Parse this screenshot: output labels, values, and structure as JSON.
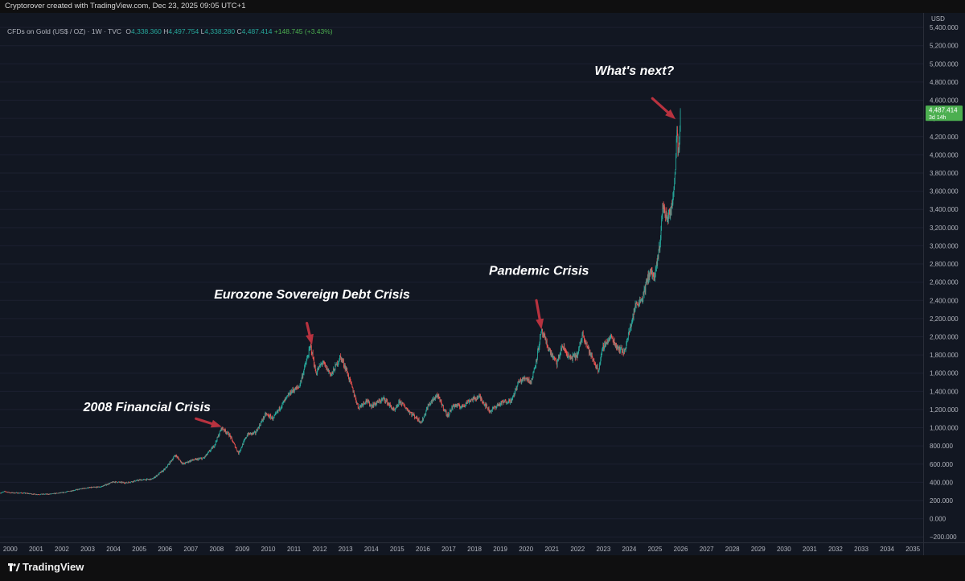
{
  "header": {
    "credit": "Cryptorover created with TradingView.com, Dec 23, 2025 09:05 UTC+1"
  },
  "legend": {
    "symbol": "CFDs on Gold (US$ / OZ) · 1W · TVC",
    "o_label": "O",
    "open": "4,338.360",
    "h_label": "H",
    "high": "4,497.754",
    "l_label": "L",
    "low": "4,338.280",
    "c_label": "C",
    "close": "4,487.414",
    "change": "+148.745 (+3.43%)"
  },
  "price_tag": {
    "value": "4,487.414",
    "countdown": "3d 14h",
    "color": "#4caf50"
  },
  "footer": {
    "brand": "TradingView"
  },
  "colors": {
    "up": "#26a69a",
    "down": "#ef5350",
    "arrow": "#b8323f",
    "background": "#121722"
  },
  "chart_data": {
    "type": "candlestick",
    "title": "",
    "currency": "USD",
    "x_unit": "year",
    "xlim": [
      1999.6,
      2035.4
    ],
    "ylim": [
      -260,
      5560
    ],
    "x_ticks": [
      "2000",
      "2001",
      "2002",
      "2003",
      "2004",
      "2005",
      "2006",
      "2007",
      "2008",
      "2009",
      "2010",
      "2011",
      "2012",
      "2013",
      "2014",
      "2015",
      "2016",
      "2017",
      "2018",
      "2019",
      "2020",
      "2021",
      "2022",
      "2023",
      "2024",
      "2025",
      "2026",
      "2027",
      "2028",
      "2029",
      "2030",
      "2031",
      "2032",
      "2033",
      "2034",
      "2035"
    ],
    "y_ticks": [
      -200,
      0,
      200,
      400,
      600,
      800,
      1000,
      1200,
      1400,
      1600,
      1800,
      2000,
      2200,
      2400,
      2600,
      2800,
      3000,
      3200,
      3400,
      3600,
      3800,
      4000,
      4200,
      4400,
      4600,
      4800,
      5000,
      5200,
      5400
    ],
    "y_tick_labels": [
      "−200.000",
      "0.000",
      "200.000",
      "400.000",
      "600.000",
      "800.000",
      "1,000.000",
      "1,200.000",
      "1,400.000",
      "1,600.000",
      "1,800.000",
      "2,000.000",
      "2,200.000",
      "2,400.000",
      "2,600.000",
      "2,800.000",
      "3,000.000",
      "3,200.000",
      "3,400.000",
      "3,600.000",
      "3,800.000",
      "4,000.000",
      "4,200.000",
      "4,400.000",
      "4,600.000",
      "4,800.000",
      "5,000.000",
      "5,200.000",
      "5,400.000"
    ],
    "price_path": [
      [
        1999.6,
        282
      ],
      [
        1999.8,
        300
      ],
      [
        2000.0,
        285
      ],
      [
        2000.5,
        282
      ],
      [
        2001.0,
        268
      ],
      [
        2001.5,
        270
      ],
      [
        2002.0,
        285
      ],
      [
        2002.5,
        315
      ],
      [
        2003.0,
        340
      ],
      [
        2003.5,
        350
      ],
      [
        2004.0,
        405
      ],
      [
        2004.5,
        395
      ],
      [
        2005.0,
        425
      ],
      [
        2005.5,
        435
      ],
      [
        2006.0,
        545
      ],
      [
        2006.4,
        700
      ],
      [
        2006.7,
        600
      ],
      [
        2007.0,
        640
      ],
      [
        2007.5,
        665
      ],
      [
        2007.9,
        800
      ],
      [
        2008.2,
        1000
      ],
      [
        2008.5,
        920
      ],
      [
        2008.85,
        720
      ],
      [
        2009.2,
        930
      ],
      [
        2009.5,
        940
      ],
      [
        2009.9,
        1150
      ],
      [
        2010.2,
        1100
      ],
      [
        2010.5,
        1240
      ],
      [
        2010.9,
        1400
      ],
      [
        2011.2,
        1450
      ],
      [
        2011.65,
        1900
      ],
      [
        2011.85,
        1600
      ],
      [
        2012.1,
        1720
      ],
      [
        2012.45,
        1580
      ],
      [
        2012.8,
        1780
      ],
      [
        2013.0,
        1660
      ],
      [
        2013.3,
        1400
      ],
      [
        2013.5,
        1220
      ],
      [
        2013.8,
        1300
      ],
      [
        2014.0,
        1240
      ],
      [
        2014.5,
        1320
      ],
      [
        2014.9,
        1180
      ],
      [
        2015.1,
        1290
      ],
      [
        2015.5,
        1170
      ],
      [
        2015.95,
        1060
      ],
      [
        2016.2,
        1240
      ],
      [
        2016.55,
        1360
      ],
      [
        2016.95,
        1130
      ],
      [
        2017.2,
        1250
      ],
      [
        2017.5,
        1230
      ],
      [
        2017.8,
        1300
      ],
      [
        2018.2,
        1340
      ],
      [
        2018.6,
        1180
      ],
      [
        2018.9,
        1250
      ],
      [
        2019.2,
        1290
      ],
      [
        2019.45,
        1300
      ],
      [
        2019.7,
        1500
      ],
      [
        2020.0,
        1550
      ],
      [
        2020.2,
        1500
      ],
      [
        2020.4,
        1750
      ],
      [
        2020.6,
        2060
      ],
      [
        2020.9,
        1850
      ],
      [
        2021.2,
        1700
      ],
      [
        2021.4,
        1900
      ],
      [
        2021.7,
        1760
      ],
      [
        2022.0,
        1800
      ],
      [
        2022.2,
        2040
      ],
      [
        2022.5,
        1800
      ],
      [
        2022.8,
        1630
      ],
      [
        2023.0,
        1900
      ],
      [
        2023.3,
        2000
      ],
      [
        2023.5,
        1900
      ],
      [
        2023.8,
        1830
      ],
      [
        2024.0,
        2050
      ],
      [
        2024.25,
        2350
      ],
      [
        2024.5,
        2420
      ],
      [
        2024.8,
        2720
      ],
      [
        2025.0,
        2650
      ],
      [
        2025.2,
        3050
      ],
      [
        2025.3,
        3450
      ],
      [
        2025.45,
        3300
      ],
      [
        2025.65,
        3400
      ],
      [
        2025.8,
        3900
      ],
      [
        2025.85,
        4350
      ],
      [
        2025.9,
        4000
      ],
      [
        2026.0,
        4487
      ]
    ],
    "last_price": 4487.414,
    "annotations": [
      {
        "text": "2008 Financial Crisis",
        "x": 2005.3,
        "y": 1180,
        "arrow_from": [
          2007.2,
          1100
        ],
        "arrow_to": [
          2008.2,
          1010
        ]
      },
      {
        "text": "Eurozone Sovereign Debt Crisis",
        "x": 2011.7,
        "y": 2420,
        "arrow_from": [
          2011.5,
          2150
        ],
        "arrow_to": [
          2011.7,
          1910
        ]
      },
      {
        "text": "Pandemic Crisis",
        "x": 2020.5,
        "y": 2680,
        "arrow_from": [
          2020.4,
          2400
        ],
        "arrow_to": [
          2020.6,
          2080
        ]
      },
      {
        "text": "What's next?",
        "x": 2024.2,
        "y": 4880,
        "arrow_from": [
          2024.9,
          4620
        ],
        "arrow_to": [
          2025.8,
          4390
        ]
      }
    ]
  }
}
